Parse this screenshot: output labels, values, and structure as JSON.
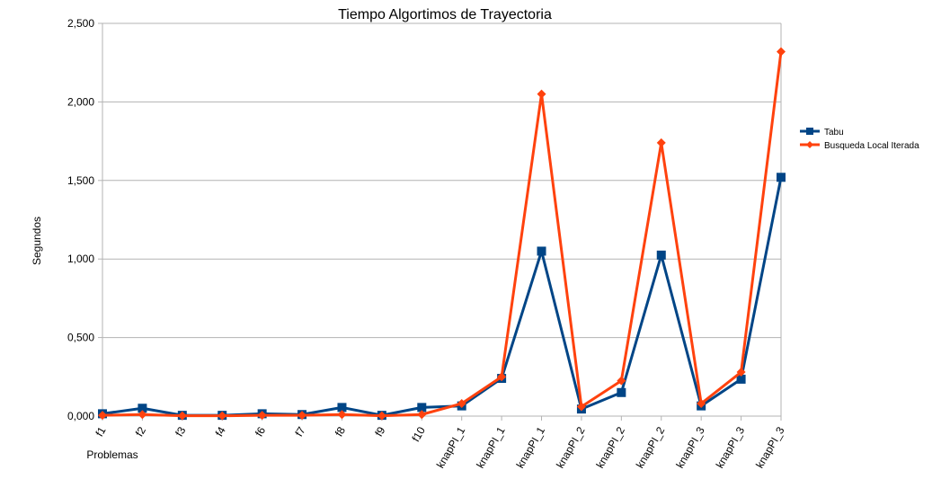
{
  "chart_data": {
    "type": "line",
    "title": "Tiempo Algortimos de Trayectoria",
    "xlabel": "Problemas",
    "ylabel": "Segundos",
    "categories": [
      "f1",
      "f2",
      "f3",
      "f4",
      "f6",
      "f7",
      "f8",
      "f9",
      "f10",
      "knapPI_1",
      "knapPI_1",
      "knapPI_1",
      "knapPI_2",
      "knapPI_2",
      "knapPI_2",
      "knapPI_3",
      "knapPI_3",
      "knapPI_3"
    ],
    "ylim": [
      0,
      2.5
    ],
    "yticks": [
      "0,000",
      "0,500",
      "1,000",
      "1,500",
      "2,000",
      "2,500"
    ],
    "grid": true,
    "legend_position": "right",
    "series": [
      {
        "name": "Tabu",
        "color": "#004586",
        "marker": "square",
        "values": [
          0.015,
          0.05,
          0.005,
          0.005,
          0.015,
          0.01,
          0.055,
          0.005,
          0.055,
          0.065,
          0.24,
          1.05,
          0.045,
          0.15,
          1.025,
          0.065,
          0.235,
          1.52
        ]
      },
      {
        "name": "Busqueda Local Iterada",
        "color": "#ff420e",
        "marker": "diamond",
        "values": [
          0.005,
          0.01,
          0.002,
          0.002,
          0.005,
          0.005,
          0.01,
          0.002,
          0.01,
          0.08,
          0.25,
          2.05,
          0.06,
          0.225,
          1.74,
          0.08,
          0.28,
          2.32
        ]
      }
    ]
  }
}
